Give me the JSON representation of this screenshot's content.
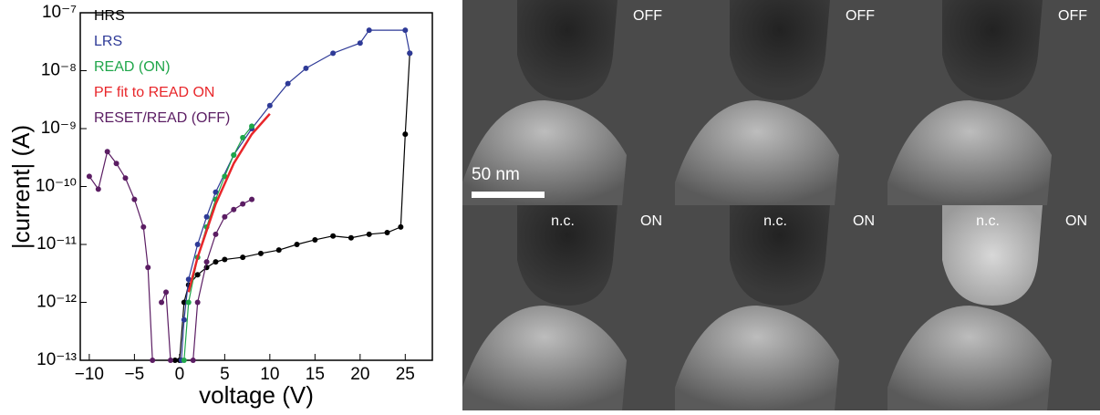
{
  "chart_data": {
    "type": "line",
    "log_y": true,
    "x_label": "voltage (V)",
    "y_label": "|current| (A)",
    "xlim": [
      -11,
      28
    ],
    "xticks": [
      {
        "value": -10,
        "label": "−10"
      },
      {
        "value": -5,
        "label": "−5"
      },
      0,
      5,
      10,
      15,
      20,
      25
    ],
    "ylim": [
      1e-13,
      1e-07
    ],
    "yticks": [
      {
        "value": 1e-13,
        "label": "10⁻¹³"
      },
      {
        "value": 1e-12,
        "label": "10⁻¹²"
      },
      {
        "value": 1e-11,
        "label": "10⁻¹¹"
      },
      {
        "value": 1e-10,
        "label": "10⁻¹⁰"
      },
      {
        "value": 1e-09,
        "label": "10⁻⁹"
      },
      {
        "value": 1e-08,
        "label": "10⁻⁸"
      },
      {
        "value": 1e-07,
        "label": "10⁻⁷"
      }
    ],
    "legend": "upper left",
    "series": [
      {
        "name": "HRS",
        "color": "#000000",
        "markers": true,
        "x": [
          -0.5,
          0,
          0.5,
          1,
          2,
          3,
          4,
          5,
          7,
          9,
          11,
          13,
          15,
          17,
          19,
          21,
          23,
          24.5,
          25,
          25.5
        ],
        "values": [
          1e-13,
          1e-13,
          1e-12,
          2e-12,
          3e-12,
          4e-12,
          5e-12,
          5.5e-12,
          6e-12,
          7e-12,
          8e-12,
          1e-11,
          1.2e-11,
          1.4e-11,
          1.3e-11,
          1.5e-11,
          1.6e-11,
          2e-11,
          8e-10,
          2e-08
        ]
      },
      {
        "name": "LRS",
        "color": "#2e3a97",
        "markers": true,
        "x": [
          25.5,
          25,
          21,
          20,
          17,
          14,
          12,
          10,
          8,
          6,
          4,
          3,
          2,
          1,
          0.5,
          0.2
        ],
        "values": [
          2e-08,
          5e-08,
          5e-08,
          3e-08,
          2e-08,
          1.1e-08,
          6e-09,
          2.5e-09,
          1e-09,
          3.5e-10,
          8e-11,
          3e-11,
          1e-11,
          2.5e-12,
          5e-13,
          1e-13
        ]
      },
      {
        "name": "READ (ON)",
        "color": "#1fa64a",
        "markers": true,
        "x": [
          0.5,
          1,
          2,
          3,
          4,
          5,
          6,
          7,
          8
        ],
        "values": [
          1e-13,
          1e-12,
          6e-12,
          2e-11,
          6e-11,
          1.5e-10,
          3.5e-10,
          7e-10,
          1.1e-09
        ]
      },
      {
        "name": "PF fit to READ ON",
        "color": "#e8262a",
        "markers": false,
        "x": [
          1,
          2,
          4,
          6,
          8,
          10
        ],
        "values": [
          1.5e-12,
          6e-12,
          5e-11,
          2.5e-10,
          8e-10,
          1.8e-09
        ]
      },
      {
        "name": "RESET/READ (OFF)",
        "color": "#5b1d63",
        "markers": true,
        "x": [
          -10,
          -9,
          -8,
          -7,
          -6,
          -5,
          -4,
          -3.5,
          -3,
          -2.5,
          -2,
          -1.5,
          -1,
          -0.5,
          1.5,
          2,
          3,
          4,
          5,
          6,
          7,
          8
        ],
        "values": [
          1.5e-10,
          9e-11,
          4e-10,
          2.5e-10,
          1.4e-10,
          6e-11,
          2e-11,
          4e-12,
          1e-13,
          null,
          1e-12,
          1.5e-12,
          1e-13,
          null,
          1e-13,
          1e-12,
          5e-12,
          1.5e-11,
          3e-11,
          4e-11,
          5e-11,
          6e-11
        ]
      }
    ]
  },
  "images": {
    "scale_bar": "50 nm",
    "panels": [
      {
        "label": "OFF"
      },
      {
        "label": "OFF"
      },
      {
        "label": "OFF"
      },
      {
        "note": "n.c.",
        "label": "ON"
      },
      {
        "note": "n.c.",
        "label": "ON"
      },
      {
        "note": "n.c.",
        "label": "ON"
      }
    ]
  }
}
